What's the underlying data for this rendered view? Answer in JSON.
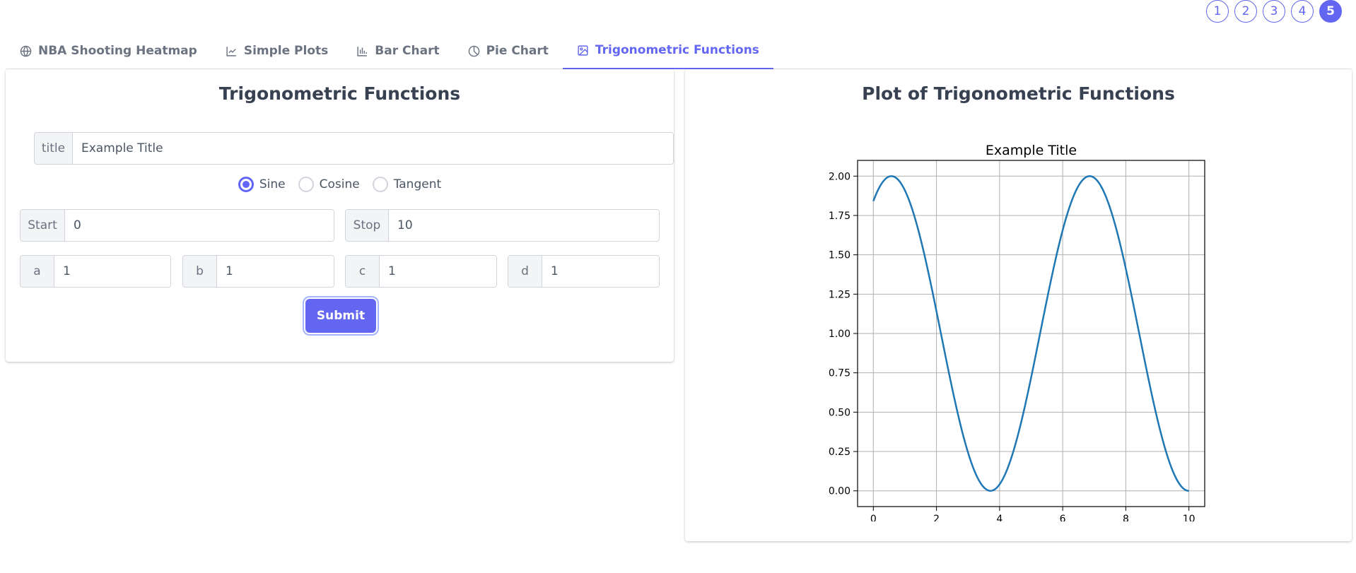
{
  "pagination": [
    "1",
    "2",
    "3",
    "4",
    "5"
  ],
  "tabs": [
    {
      "label": "NBA Shooting Heatmap",
      "icon": "globe-icon"
    },
    {
      "label": "Simple Plots",
      "icon": "line-chart-icon"
    },
    {
      "label": "Bar Chart",
      "icon": "bar-chart-icon"
    },
    {
      "label": "Pie Chart",
      "icon": "pie-chart-icon"
    },
    {
      "label": "Trigonometric Functions",
      "icon": "image-icon"
    }
  ],
  "form": {
    "heading": "Trigonometric Functions",
    "title_label": "title",
    "title_value": "Example Title",
    "functions": [
      "Sine",
      "Cosine",
      "Tangent"
    ],
    "selected_function": "Sine",
    "start_label": "Start",
    "start_value": "0",
    "stop_label": "Stop",
    "stop_value": "10",
    "a_label": "a",
    "a_value": "1",
    "b_label": "b",
    "b_value": "1",
    "c_label": "c",
    "c_value": "1",
    "d_label": "d",
    "d_value": "1",
    "submit_label": "Submit"
  },
  "plot_panel": {
    "heading": "Plot of Trigonometric Functions"
  },
  "colors": {
    "accent": "#6366f1",
    "line": "#1f77b4"
  },
  "chart_data": {
    "type": "line",
    "title": "Example Title",
    "xlabel": "",
    "ylabel": "",
    "function": "sin(x + 1) + 1",
    "x_range": [
      0,
      10
    ],
    "xlim": [
      -0.5,
      10.5
    ],
    "ylim": [
      -0.1,
      2.1
    ],
    "xticks": [
      0,
      2,
      4,
      6,
      8,
      10
    ],
    "yticks": [
      0.0,
      0.25,
      0.5,
      0.75,
      1.0,
      1.25,
      1.5,
      1.75,
      2.0
    ],
    "ytick_labels": [
      "0.00",
      "0.25",
      "0.50",
      "0.75",
      "1.00",
      "1.25",
      "1.50",
      "1.75",
      "2.00"
    ],
    "grid": true,
    "series": [
      {
        "x": [
          0,
          0.5,
          1,
          1.5,
          2,
          2.5,
          3,
          3.5,
          4,
          4.5,
          5,
          5.5,
          6,
          6.5,
          7,
          7.5,
          8,
          8.5,
          9,
          9.5,
          10
        ],
        "values": [
          1.84,
          2.0,
          1.91,
          1.6,
          1.14,
          0.65,
          0.24,
          0.02,
          0.04,
          0.29,
          0.72,
          1.22,
          1.66,
          1.94,
          1.99,
          1.8,
          1.41,
          0.92,
          0.46,
          0.12,
          0.0
        ]
      }
    ]
  }
}
